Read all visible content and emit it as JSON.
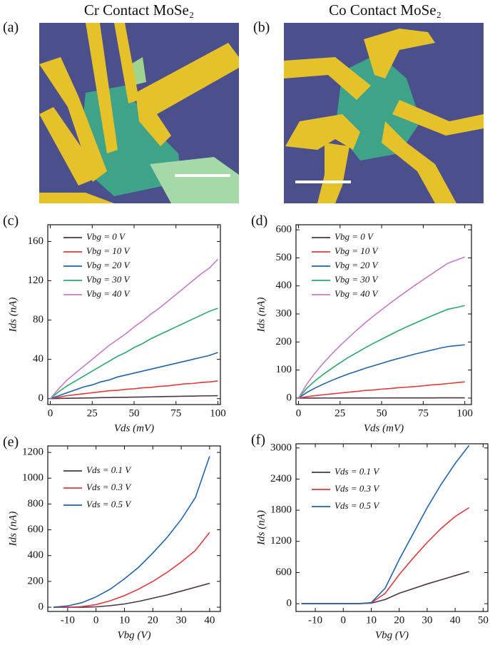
{
  "photos": [
    {
      "panel": "(a)",
      "title": "Cr Contact MoSe₂"
    },
    {
      "panel": "(b)",
      "title": "Co Contact MoSe₂"
    }
  ],
  "chart_data": [
    {
      "type": "line",
      "panel": "(c)",
      "xlabel": "Vds (mV)",
      "ylabel": "Ids (nA)",
      "legend": "upper left",
      "x": [
        0,
        5,
        10,
        15,
        20,
        25,
        30,
        35,
        40,
        45,
        50,
        55,
        60,
        65,
        70,
        75,
        80,
        85,
        90,
        95,
        100
      ],
      "xlim": [
        -1.5,
        101.5
      ],
      "ylim": [
        -6,
        177
      ],
      "xticks": [
        0,
        25,
        50,
        75,
        100
      ],
      "yticks": [
        0,
        40,
        80,
        120,
        160
      ],
      "series": [
        {
          "name": "Vbg = 0 V",
          "color": "#4b3448",
          "values": [
            0,
            0.2,
            0.4,
            0.5,
            0.7,
            0.8,
            1,
            1.1,
            1.3,
            1.4,
            1.6,
            1.7,
            1.9,
            2,
            2.2,
            2.3,
            2.5,
            2.6,
            2.8,
            2.9,
            3
          ]
        },
        {
          "name": "Vbg = 10 V",
          "color": "#e03a3c",
          "values": [
            0,
            1.5,
            3,
            4,
            5,
            6,
            7,
            8,
            8.5,
            9.5,
            10,
            11,
            11.5,
            12.5,
            13,
            14,
            15,
            15.5,
            16.5,
            17,
            18
          ]
        },
        {
          "name": "Vbg = 20 V",
          "color": "#1f63ad",
          "values": [
            0,
            3,
            6,
            9,
            12,
            14,
            17,
            19,
            22,
            24,
            26,
            28,
            30,
            32,
            34,
            36,
            38,
            40,
            42,
            44,
            47
          ]
        },
        {
          "name": "Vbg = 30 V",
          "color": "#2aa86a",
          "values": [
            0,
            7,
            13,
            18,
            23,
            28,
            33,
            38,
            43,
            47,
            52,
            56,
            61,
            65,
            69,
            73,
            77,
            81,
            85,
            89,
            92
          ]
        },
        {
          "name": "Vbg = 40 V",
          "color": "#c47bc8",
          "values": [
            0,
            10,
            19,
            26,
            33,
            40,
            47,
            54,
            60,
            66,
            73,
            79,
            86,
            92,
            99,
            106,
            113,
            120,
            127,
            133,
            142
          ]
        }
      ]
    },
    {
      "type": "line",
      "panel": "(d)",
      "xlabel": "Vds (mV)",
      "ylabel": "Ids (nA)",
      "legend": "upper left",
      "x": [
        0,
        5,
        10,
        15,
        20,
        25,
        30,
        35,
        40,
        45,
        50,
        55,
        60,
        65,
        70,
        75,
        80,
        85,
        90,
        95,
        100
      ],
      "xlim": [
        -1.5,
        104
      ],
      "ylim": [
        -23,
        618
      ],
      "xticks": [
        0,
        25,
        50,
        75,
        100
      ],
      "yticks": [
        0,
        100,
        200,
        300,
        400,
        500,
        600
      ],
      "series": [
        {
          "name": "Vbg = 0 V",
          "color": "#4b3448",
          "values": [
            0,
            0.1,
            0.1,
            0.2,
            0.2,
            0.3,
            0.3,
            0.4,
            0.4,
            0.5,
            0.5,
            0.6,
            0.6,
            0.7,
            0.7,
            0.8,
            0.8,
            0.9,
            0.9,
            1,
            1
          ]
        },
        {
          "name": "Vbg = 10 V",
          "color": "#e03a3c",
          "values": [
            0,
            5,
            9,
            12,
            15,
            18,
            21,
            24,
            27,
            29,
            32,
            34,
            37,
            39,
            41,
            44,
            47,
            49,
            52,
            55,
            58
          ]
        },
        {
          "name": "Vbg = 20 V",
          "color": "#1f63ad",
          "values": [
            0,
            20,
            36,
            50,
            63,
            75,
            86,
            96,
            106,
            115,
            124,
            133,
            141,
            149,
            157,
            164,
            171,
            178,
            184,
            187,
            190
          ]
        },
        {
          "name": "Vbg = 30 V",
          "color": "#2aa86a",
          "values": [
            0,
            35,
            62,
            85,
            106,
            126,
            145,
            162,
            179,
            195,
            210,
            225,
            240,
            254,
            267,
            280,
            293,
            305,
            317,
            323,
            330
          ]
        },
        {
          "name": "Vbg = 40 V",
          "color": "#c47bc8",
          "values": [
            0,
            50,
            90,
            125,
            157,
            187,
            215,
            242,
            268,
            292,
            315,
            338,
            360,
            381,
            402,
            422,
            442,
            462,
            481,
            492,
            503
          ]
        }
      ]
    },
    {
      "type": "line",
      "panel": "(e)",
      "xlabel": "Vbg (V)",
      "ylabel": "Ids (nA)",
      "legend": "upper left",
      "x": [
        -15,
        -10,
        -5,
        0,
        5,
        10,
        15,
        20,
        25,
        30,
        35,
        40
      ],
      "xlim": [
        -17,
        43.8
      ],
      "ylim": [
        -33,
        1250
      ],
      "xticks": [
        -10,
        0,
        10,
        20,
        30,
        40
      ],
      "yticks": [
        0,
        200,
        400,
        600,
        800,
        1000,
        1200
      ],
      "series": [
        {
          "name": "Vds = 0.1 V",
          "color": "#4b3448",
          "values": [
            0,
            0,
            0,
            3,
            12,
            25,
            45,
            70,
            95,
            125,
            155,
            185
          ]
        },
        {
          "name": "Vds = 0.3 V",
          "color": "#e03a3c",
          "values": [
            0,
            0,
            5,
            20,
            50,
            90,
            140,
            200,
            270,
            350,
            440,
            580
          ]
        },
        {
          "name": "Vds = 0.5 V",
          "color": "#1f63ad",
          "values": [
            0,
            10,
            35,
            80,
            140,
            220,
            310,
            420,
            540,
            680,
            850,
            1170
          ]
        }
      ]
    },
    {
      "type": "line",
      "panel": "(f)",
      "xlabel": "Vbg (V)",
      "ylabel": "Ids (nA)",
      "legend": "upper left",
      "x": [
        -15,
        -10,
        -5,
        0,
        5,
        10,
        15,
        20,
        25,
        30,
        35,
        40,
        45
      ],
      "xlim": [
        -16.9,
        51.7
      ],
      "ylim": [
        -150,
        3080
      ],
      "xticks": [
        -10,
        0,
        10,
        20,
        30,
        40,
        50
      ],
      "yticks": [
        0,
        600,
        1200,
        1800,
        2400,
        3000
      ],
      "series": [
        {
          "name": "Vds = 0.1 V",
          "color": "#4b3448",
          "values": [
            0,
            0,
            0,
            0,
            0,
            10,
            80,
            200,
            290,
            380,
            460,
            540,
            620
          ]
        },
        {
          "name": "Vds = 0.3 V",
          "color": "#e03a3c",
          "values": [
            0,
            0,
            0,
            0,
            0,
            15,
            200,
            560,
            880,
            1180,
            1450,
            1680,
            1850
          ]
        },
        {
          "name": "Vds = 0.5 V",
          "color": "#1f63ad",
          "values": [
            0,
            0,
            0,
            0,
            0,
            20,
            300,
            850,
            1350,
            1850,
            2300,
            2700,
            3050
          ]
        }
      ]
    }
  ]
}
